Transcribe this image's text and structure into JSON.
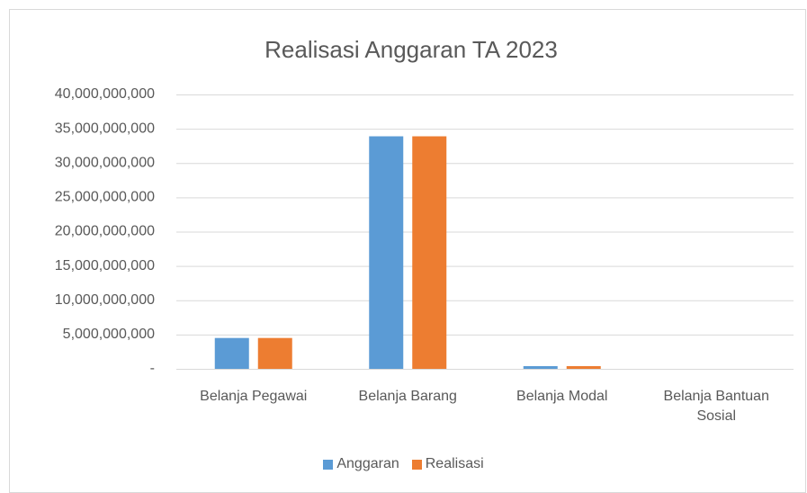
{
  "chart_data": {
    "type": "bar",
    "title": "Realisasi Anggaran TA 2023",
    "categories": [
      "Belanja Pegawai",
      "Belanja Barang",
      "Belanja Modal",
      "Belanja Bantuan Sosial"
    ],
    "series": [
      {
        "name": "Anggaran",
        "color": "#5b9bd5",
        "values": [
          4500000000,
          33900000000,
          400000000,
          0
        ]
      },
      {
        "name": "Realisasi",
        "color": "#ed7d31",
        "values": [
          4500000000,
          33900000000,
          400000000,
          0
        ]
      }
    ],
    "ylim": [
      0,
      40000000000
    ],
    "yticks": [
      {
        "value": 0,
        "label": "-"
      },
      {
        "value": 5000000000,
        "label": "5,000,000,000"
      },
      {
        "value": 10000000000,
        "label": "10,000,000,000"
      },
      {
        "value": 15000000000,
        "label": "15,000,000,000"
      },
      {
        "value": 20000000000,
        "label": "20,000,000,000"
      },
      {
        "value": 25000000000,
        "label": "25,000,000,000"
      },
      {
        "value": 30000000000,
        "label": "30,000,000,000"
      },
      {
        "value": 35000000000,
        "label": "35,000,000,000"
      },
      {
        "value": 40000000000,
        "label": "40,000,000,000"
      }
    ],
    "grid": true,
    "legend": "bottom"
  }
}
